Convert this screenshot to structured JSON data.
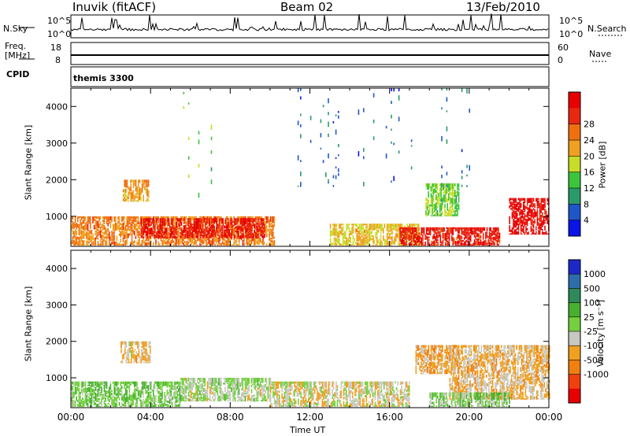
{
  "header": {
    "title": "Inuvik (fitACF)",
    "beam": "Beam 02",
    "date": "13/Feb/2010"
  },
  "panels": {
    "nsky": {
      "label": "N.Sky",
      "top_tick": "10^5",
      "bottom_tick": "10^0",
      "right_top_tick": "10^5",
      "right_bottom_tick": "10^0",
      "right_label": "N.Search"
    },
    "freq": {
      "label_line1": "Freq.",
      "label_line2": "[MHz]",
      "left_ticks": [
        "18",
        "8"
      ],
      "right_ticks": [
        "60",
        "0"
      ],
      "right_label": "Nave"
    },
    "cpid": {
      "label": "CPID",
      "value": "themis 3300"
    }
  },
  "axes": {
    "xlabel": "Time UT",
    "ylabel": "Slant Range [km]",
    "x_ticks": [
      "00:00",
      "04:00",
      "08:00",
      "12:00",
      "16:00",
      "20:00",
      "00:00"
    ],
    "y_ticks": [
      "1000",
      "2000",
      "3000",
      "4000"
    ]
  },
  "colorbars": {
    "power": {
      "label": "Power [dB]",
      "ticks": [
        "4",
        "8",
        "12",
        "16",
        "20",
        "24",
        "28"
      ],
      "colors": [
        "#0a14e6",
        "#1e56c8",
        "#2a9a6a",
        "#3cc43c",
        "#c8dc28",
        "#f0a020",
        "#f07010",
        "#e82810",
        "#e80000"
      ]
    },
    "velocity": {
      "label": "Velocity [m s⁻¹]",
      "ticks": [
        "1000",
        "500",
        "100",
        "25",
        "-25",
        "-100",
        "-500",
        "-1000"
      ],
      "colors": [
        "#1e28c8",
        "#2e6ea8",
        "#2e8a5a",
        "#48b030",
        "#74d040",
        "#c8c8c0",
        "#f0a020",
        "#f08010",
        "#f04010",
        "#e80000"
      ]
    }
  },
  "chart_data": [
    {
      "type": "heatmap",
      "title": "Power",
      "xlabel": "Time UT",
      "ylabel": "Slant Range [km]",
      "xlim": [
        "00:00",
        "24:00"
      ],
      "ylim": [
        180,
        4500
      ],
      "colorbar_label": "Power [dB]",
      "colorbar_range": [
        0,
        32
      ],
      "regions": [
        {
          "t_start": 0.0,
          "t_end": 10.2,
          "r_min": 200,
          "r_max": 1000,
          "value": 22
        },
        {
          "t_start": 2.6,
          "t_end": 3.9,
          "r_min": 1400,
          "r_max": 2000,
          "value": 20
        },
        {
          "t_start": 3.5,
          "t_end": 9.7,
          "r_min": 400,
          "r_max": 950,
          "value": 28
        },
        {
          "t_start": 13.0,
          "t_end": 17.5,
          "r_min": 200,
          "r_max": 800,
          "value": 18
        },
        {
          "t_start": 16.5,
          "t_end": 21.5,
          "r_min": 200,
          "r_max": 700,
          "value": 28
        },
        {
          "t_start": 17.8,
          "t_end": 19.5,
          "r_min": 1000,
          "r_max": 1900,
          "value": 14
        },
        {
          "t_start": 22.0,
          "t_end": 24.0,
          "r_min": 500,
          "r_max": 1500,
          "value": 30
        },
        {
          "t_start": 5.0,
          "t_end": 7.2,
          "r_min": 1500,
          "r_max": 4400,
          "value": 14
        },
        {
          "t_start": 11.0,
          "t_end": 20.0,
          "r_min": 1800,
          "r_max": 4500,
          "value": 6
        }
      ]
    },
    {
      "type": "heatmap",
      "title": "Velocity",
      "xlabel": "Time UT",
      "ylabel": "Slant Range [km]",
      "xlim": [
        "00:00",
        "24:00"
      ],
      "ylim": [
        180,
        4500
      ],
      "colorbar_label": "Velocity [m s⁻¹]",
      "colorbar_range": [
        -1000,
        1000
      ],
      "regions": [
        {
          "t_start": 0.0,
          "t_end": 5.5,
          "r_min": 200,
          "r_max": 900,
          "value": 150
        },
        {
          "t_start": 2.5,
          "t_end": 4.0,
          "r_min": 1400,
          "r_max": 2000,
          "value": -200
        },
        {
          "t_start": 5.5,
          "t_end": 10.0,
          "r_min": 350,
          "r_max": 1000,
          "value": 0
        },
        {
          "t_start": 10.0,
          "t_end": 17.0,
          "r_min": 200,
          "r_max": 900,
          "value": -120
        },
        {
          "t_start": 17.3,
          "t_end": 19.5,
          "r_min": 1100,
          "r_max": 1900,
          "value": -300
        },
        {
          "t_start": 19.0,
          "t_end": 24.0,
          "r_min": 400,
          "r_max": 1900,
          "value": -250
        },
        {
          "t_start": 18.0,
          "t_end": 22.0,
          "r_min": 200,
          "r_max": 600,
          "value": 120
        }
      ]
    }
  ]
}
